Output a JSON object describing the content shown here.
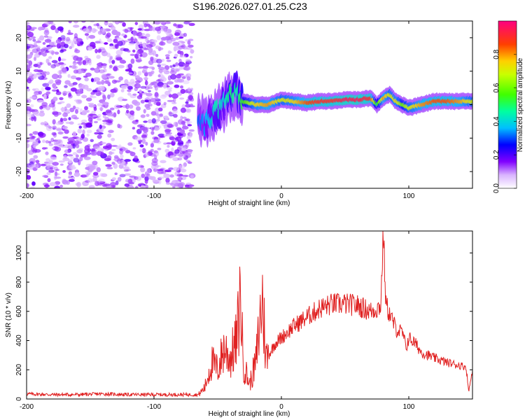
{
  "figure_title": "S196.2026.027.01.25.C23",
  "colors": {
    "snr_line": "#e02020",
    "axis": "#000000"
  },
  "chart_data": [
    {
      "type": "heatmap",
      "xlabel": "Height of straight line (km)",
      "ylabel": "Frequency (Hz)",
      "xlim": [
        -200,
        150
      ],
      "ylim": [
        -25,
        25
      ],
      "x_ticks": [
        -200,
        -100,
        0,
        100
      ],
      "y_ticks": [
        -20,
        -10,
        0,
        10,
        20
      ],
      "colorbar": {
        "label": "Normalized spectral amplitude",
        "range": [
          0,
          1
        ],
        "ticks": [
          0.0,
          0.2,
          0.4,
          0.6,
          0.8
        ],
        "colormap": "rainbow (white-violet-blue-cyan-green-yellow-red-magenta)"
      },
      "ridge": {
        "x": [
          -65,
          -60,
          -55,
          -50,
          -45,
          -40,
          -35,
          -30,
          -20,
          -10,
          0,
          10,
          20,
          30,
          40,
          50,
          60,
          70,
          75,
          80,
          85,
          90,
          95,
          100,
          110,
          120,
          130,
          140,
          150
        ],
        "freq": [
          -4,
          -6,
          -4,
          -2,
          0,
          3,
          4,
          1,
          0,
          0,
          1.5,
          1,
          0.5,
          1,
          1,
          1.5,
          1.5,
          2,
          0,
          2,
          3,
          1,
          0,
          -1,
          0,
          1,
          1,
          1,
          1
        ],
        "amplitude": [
          0.3,
          0.35,
          0.4,
          0.45,
          0.4,
          0.5,
          0.45,
          0.55,
          0.75,
          0.8,
          0.7,
          0.75,
          0.85,
          0.9,
          0.9,
          0.95,
          0.95,
          0.9,
          0.5,
          0.8,
          0.7,
          0.75,
          0.6,
          0.7,
          0.8,
          0.85,
          0.85,
          0.8,
          0.7
        ]
      },
      "noise_region": {
        "x_range": [
          -200,
          -70
        ],
        "amplitude": 0.15
      }
    },
    {
      "type": "line",
      "xlabel": "Height of straight line (km)",
      "ylabel": "SNR (10 * v/v)",
      "xlim": [
        -200,
        150
      ],
      "ylim": [
        0,
        1150
      ],
      "x_ticks": [
        -200,
        -100,
        0,
        100
      ],
      "y_ticks": [
        0,
        200,
        400,
        600,
        800,
        1000
      ],
      "series": [
        {
          "x": [
            -200,
            -180,
            -160,
            -140,
            -120,
            -100,
            -80,
            -65,
            -60,
            -55,
            -50,
            -45,
            -40,
            -35,
            -32,
            -30,
            -25,
            -20,
            -15,
            -12,
            -10,
            -5,
            0,
            10,
            20,
            30,
            40,
            50,
            60,
            70,
            75,
            78,
            80,
            82,
            85,
            90,
            95,
            98,
            100,
            105,
            110,
            120,
            130,
            140,
            145,
            147,
            150
          ],
          "y": [
            35,
            30,
            30,
            35,
            30,
            30,
            30,
            30,
            80,
            250,
            200,
            350,
            280,
            400,
            730,
            250,
            100,
            250,
            700,
            280,
            300,
            380,
            420,
            500,
            560,
            620,
            650,
            650,
            640,
            600,
            620,
            640,
            1150,
            650,
            580,
            480,
            450,
            350,
            420,
            380,
            320,
            280,
            250,
            230,
            220,
            50,
            200
          ]
        }
      ]
    }
  ]
}
